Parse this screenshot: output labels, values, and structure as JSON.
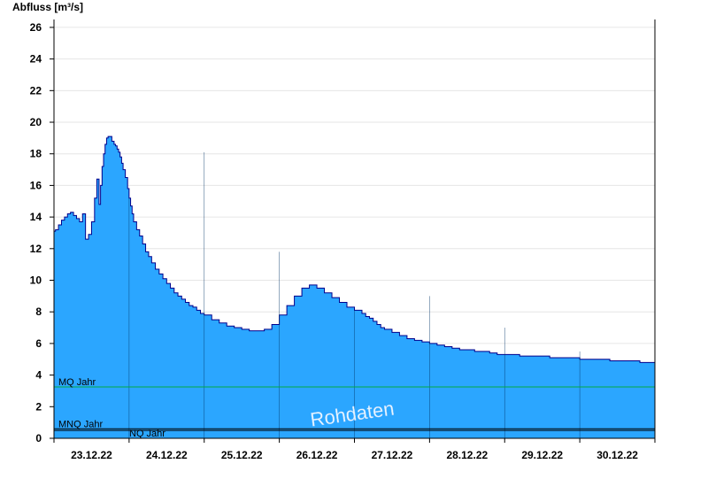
{
  "chart_data": {
    "type": "area",
    "ylabel": "Abfluss [m³/s]",
    "xlabel": "",
    "title": "",
    "ylim": [
      0,
      26.5
    ],
    "yticks": [
      0,
      2,
      4,
      6,
      8,
      10,
      12,
      14,
      16,
      18,
      20,
      22,
      24,
      26
    ],
    "xlim": [
      0,
      8
    ],
    "x_tick_labels": [
      "23.12.22",
      "24.12.22",
      "25.12.22",
      "26.12.22",
      "27.12.22",
      "28.12.22",
      "29.12.22",
      "30.12.22"
    ],
    "x_unit": "days since 23.12.22 00:00",
    "grid": "horizontal",
    "area_color": "#2ba6ff",
    "line_color": "#00008b",
    "series": [
      {
        "x": [
          0,
          0.02,
          0.06,
          0.1,
          0.14,
          0.18,
          0.22,
          0.26,
          0.3,
          0.34,
          0.38,
          0.42,
          0.46,
          0.5,
          0.54,
          0.57,
          0.6,
          0.62,
          0.64,
          0.66,
          0.68,
          0.7,
          0.72,
          0.74,
          0.77,
          0.8,
          0.82,
          0.84,
          0.86,
          0.88,
          0.9,
          0.92,
          0.95,
          0.98,
          1.0,
          1.02,
          1.04,
          1.06,
          1.1,
          1.14,
          1.18,
          1.22,
          1.26,
          1.3,
          1.35,
          1.4,
          1.45,
          1.5,
          1.55,
          1.6,
          1.65,
          1.7,
          1.75,
          1.8,
          1.85,
          1.9,
          1.95,
          2.0,
          2.1,
          2.2,
          2.3,
          2.4,
          2.5,
          2.6,
          2.7,
          2.8,
          2.9,
          3.0,
          3.1,
          3.2,
          3.3,
          3.4,
          3.5,
          3.6,
          3.7,
          3.8,
          3.9,
          4.0,
          4.1,
          4.15,
          4.2,
          4.25,
          4.3,
          4.35,
          4.4,
          4.5,
          4.6,
          4.7,
          4.8,
          4.9,
          5.0,
          5.1,
          5.2,
          5.3,
          5.4,
          5.5,
          5.6,
          5.7,
          5.8,
          5.9,
          6.0,
          6.2,
          6.4,
          6.6,
          6.8,
          7.0,
          7.2,
          7.4,
          7.6,
          7.8,
          8.0
        ],
        "y": [
          13.1,
          13.2,
          13.5,
          13.8,
          14.0,
          14.2,
          14.3,
          14.1,
          13.9,
          13.7,
          14.2,
          12.6,
          12.9,
          13.7,
          15.2,
          16.4,
          14.8,
          16.0,
          17.2,
          18.0,
          18.6,
          19.0,
          19.1,
          19.1,
          18.8,
          18.6,
          18.5,
          18.3,
          18.1,
          17.8,
          17.4,
          17.0,
          16.5,
          15.8,
          15.2,
          14.7,
          14.2,
          13.7,
          13.2,
          12.8,
          12.3,
          11.8,
          11.5,
          11.1,
          10.7,
          10.4,
          10.1,
          9.8,
          9.5,
          9.2,
          9.0,
          8.8,
          8.6,
          8.4,
          8.3,
          8.1,
          7.9,
          7.8,
          7.5,
          7.3,
          7.1,
          7.0,
          6.9,
          6.8,
          6.8,
          6.9,
          7.2,
          7.8,
          8.4,
          9.0,
          9.5,
          9.7,
          9.5,
          9.2,
          8.9,
          8.6,
          8.3,
          8.1,
          7.9,
          7.7,
          7.6,
          7.4,
          7.2,
          7.0,
          6.9,
          6.7,
          6.5,
          6.3,
          6.2,
          6.1,
          6.0,
          5.9,
          5.8,
          5.7,
          5.6,
          5.6,
          5.5,
          5.5,
          5.4,
          5.3,
          5.3,
          5.2,
          5.2,
          5.1,
          5.1,
          5.0,
          5.0,
          4.9,
          4.9,
          4.8,
          4.8
        ]
      }
    ],
    "reference_lines": [
      {
        "label": "MQ Jahr",
        "value": 3.25,
        "color": "#00aa44"
      },
      {
        "label": "MNQ Jahr",
        "value": 0.6,
        "color": "#000000"
      },
      {
        "label": "NQ Jahr",
        "value": 0.5,
        "color": "#000000"
      }
    ],
    "watermark": "Rohdaten"
  }
}
